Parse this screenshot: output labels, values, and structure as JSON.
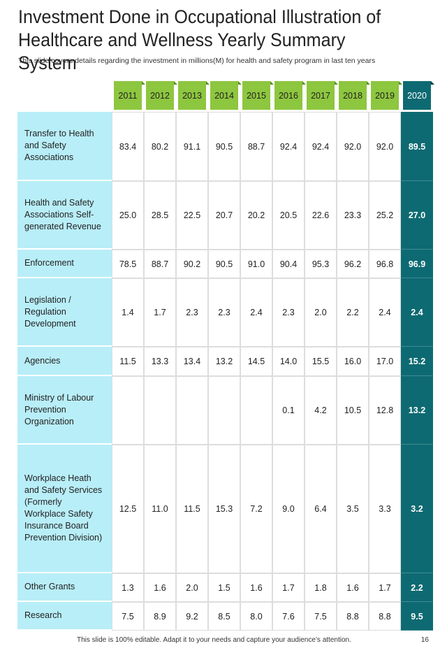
{
  "header": {
    "title": "Investment Done in Occupational Illustration of Healthcare and Wellness Yearly Summary System",
    "subtitle": "This slide covers details regarding the investment in millions(M) for health and safety program in last ten years"
  },
  "table": {
    "columns": [
      "2011",
      "2012",
      "2013",
      "2014",
      "2015",
      "2016",
      "2017",
      "2018",
      "2019",
      "2020"
    ],
    "rows": [
      {
        "label": "Transfer to Health and Safety Associations",
        "values": [
          "83.4",
          "80.2",
          "91.1",
          "90.5",
          "88.7",
          "92.4",
          "92.4",
          "92.0",
          "92.0",
          "89.5"
        ]
      },
      {
        "label": "Health and Safety Associations Self-generated Revenue",
        "values": [
          "25.0",
          "28.5",
          "22.5",
          "20.7",
          "20.2",
          "20.5",
          "22.6",
          "23.3",
          "25.2",
          "27.0"
        ]
      },
      {
        "label": "Enforcement",
        "values": [
          "78.5",
          "88.7",
          "90.2",
          "90.5",
          "91.0",
          "90.4",
          "95.3",
          "96.2",
          "96.8",
          "96.9"
        ]
      },
      {
        "label": "Legislation / Regulation Development",
        "values": [
          "1.4",
          "1.7",
          "2.3",
          "2.3",
          "2.4",
          "2.3",
          "2.0",
          "2.2",
          "2.4",
          "2.4"
        ]
      },
      {
        "label": "Agencies",
        "values": [
          "11.5",
          "13.3",
          "13.4",
          "13.2",
          "14.5",
          "14.0",
          "15.5",
          "16.0",
          "17.0",
          "15.2"
        ]
      },
      {
        "label": "Ministry of Labour Prevention Organization",
        "values": [
          null,
          null,
          null,
          null,
          null,
          "0.1",
          "4.2",
          "10.5",
          "12.8",
          "13.2"
        ]
      },
      {
        "label": "Workplace Heath and Safety Services (Formerly Workplace Safety Insurance Board Prevention Division)",
        "values": [
          "12.5",
          "11.0",
          "11.5",
          "15.3",
          "7.2",
          "9.0",
          "6.4",
          "3.5",
          "3.3",
          "3.2"
        ]
      },
      {
        "label": "Other Grants",
        "values": [
          "1.3",
          "1.6",
          "2.0",
          "1.5",
          "1.6",
          "1.7",
          "1.8",
          "1.6",
          "1.7",
          "2.2"
        ]
      },
      {
        "label": "Research",
        "values": [
          "7.5",
          "8.9",
          "9.2",
          "8.5",
          "8.0",
          "7.6",
          "7.5",
          "8.8",
          "8.8",
          "9.5"
        ]
      }
    ]
  },
  "footer": {
    "note": "This slide is 100% editable. Adapt it to your needs and capture your audience’s attention.",
    "page": "16"
  }
}
